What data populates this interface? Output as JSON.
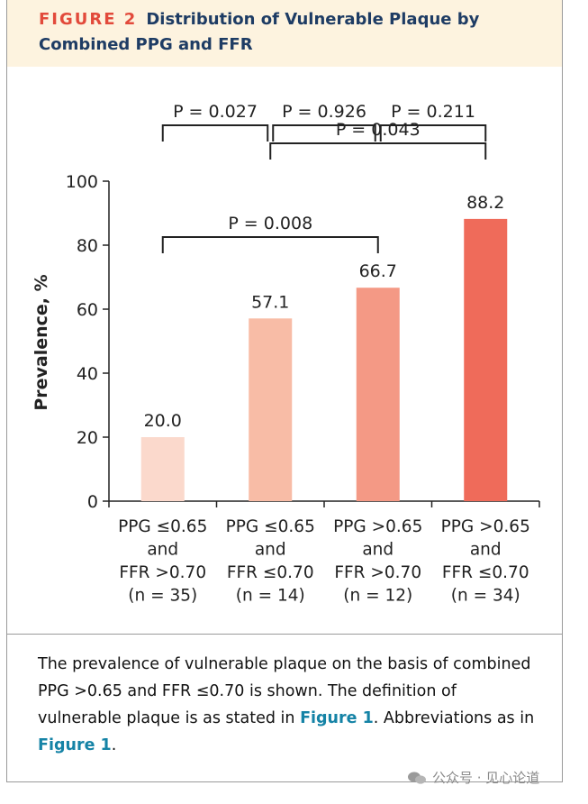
{
  "header": {
    "figure_label": "FIGURE 2",
    "title": "Distribution of Vulnerable Plaque by Combined PPG and FFR"
  },
  "chart_data": {
    "type": "bar",
    "title": "",
    "xlabel": "",
    "ylabel": "Prevalence, %",
    "ylim": [
      0,
      100
    ],
    "yticks": [
      "0",
      "20",
      "40",
      "60",
      "80",
      "100"
    ],
    "categories": [
      [
        "PPG ≤0.65",
        "and",
        "FFR >0.70",
        "(n = 35)"
      ],
      [
        "PPG ≤0.65",
        "and",
        "FFR ≤0.70",
        "(n = 14)"
      ],
      [
        "PPG >0.65",
        "and",
        "FFR >0.70",
        "(n = 12)"
      ],
      [
        "PPG >0.65",
        "and",
        "FFR ≤0.70",
        "(n = 34)"
      ]
    ],
    "values": [
      20.0,
      57.1,
      66.7,
      88.2
    ],
    "value_labels": [
      "20.0",
      "57.1",
      "66.7",
      "88.2"
    ],
    "bar_colors": [
      "#fbd9cc",
      "#f8bca6",
      "#f49985",
      "#ef6b5a"
    ],
    "comparisons": [
      {
        "from": 0,
        "to": 1,
        "label": "P = 0.027",
        "y": 119
      },
      {
        "from": 1,
        "to": 2,
        "label": "P = 0.926",
        "y": 119
      },
      {
        "from": 2,
        "to": 3,
        "label": "P = 0.211",
        "y": 119
      },
      {
        "from": 1,
        "to": 3,
        "label": "P = 0.043",
        "y": 104
      },
      {
        "from": 0,
        "to": 2,
        "label": "P = 0.008",
        "y": 86
      }
    ]
  },
  "caption": {
    "text_1": "The prevalence of vulnerable plaque on the basis of combined PPG >0.65 and FFR ≤0.70 is shown. The definition of vulnerable plaque is as stated in ",
    "link_1": "Figure 1",
    "text_2": ". Abbreviations as in ",
    "link_2": "Figure 1",
    "text_3": "."
  },
  "watermark": {
    "text": "公众号 · 见心论道"
  }
}
